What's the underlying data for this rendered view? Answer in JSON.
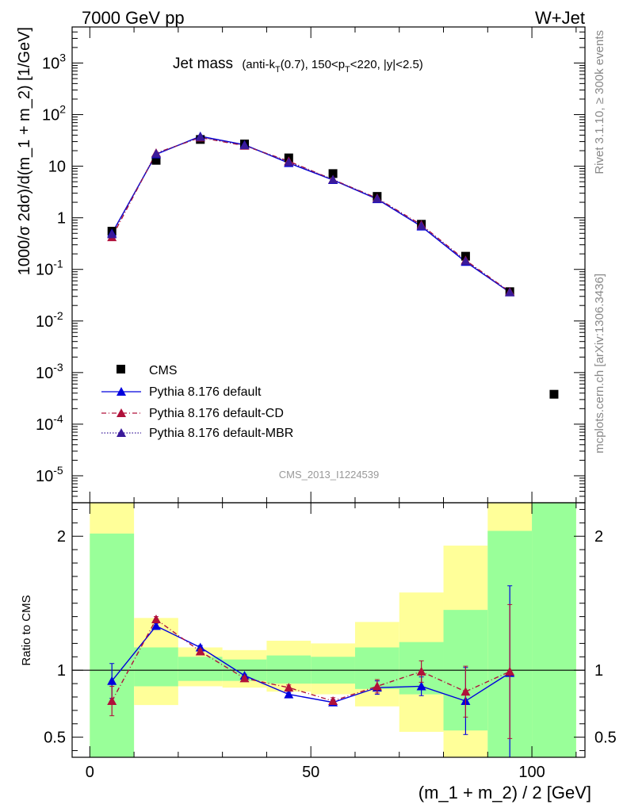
{
  "header": {
    "left": "7000 GeV pp",
    "right": "W+Jet"
  },
  "side_labels": {
    "rivet": "Rivet 3.1.10, ≥ 300k events",
    "mcplots": "mcplots.cern.ch [arXiv:1306.3436]"
  },
  "watermark": "CMS_2013_I1224539",
  "chart_data": [
    {
      "type": "scatter",
      "panel": "main",
      "title_main": "Jet mass",
      "title_sub_parts": [
        "(anti-k",
        "T",
        "(0.7), 150<p",
        "T",
        "<220, |y|<2.5)"
      ],
      "ylabel": "1000/σ 2dσ)/d(m_1 + m_2) [1/GeV]",
      "yscale": "log",
      "ylim": [
        3e-06,
        5000
      ],
      "xlim": [
        -4,
        112
      ],
      "grid": false,
      "legend_position": "bottom-left",
      "y_tick_labels": [
        {
          "value": 1000,
          "base": "10",
          "exp": "3"
        },
        {
          "value": 100,
          "base": "10",
          "exp": "2"
        },
        {
          "value": 10,
          "base": "10",
          "exp": ""
        },
        {
          "value": 1,
          "base": "1",
          "exp": ""
        },
        {
          "value": 0.1,
          "base": "10",
          "exp": "-1"
        },
        {
          "value": 0.01,
          "base": "10",
          "exp": "-2"
        },
        {
          "value": 0.001,
          "base": "10",
          "exp": "-3"
        },
        {
          "value": 0.0001,
          "base": "10",
          "exp": "-4"
        },
        {
          "value": 1e-05,
          "base": "10",
          "exp": "-5"
        }
      ],
      "x": [
        5,
        15,
        25,
        35,
        45,
        55,
        65,
        75,
        85,
        95,
        105
      ],
      "series": [
        {
          "name": "CMS",
          "color": "#000000",
          "marker": "square",
          "line": "none",
          "values": [
            0.55,
            13,
            33,
            27,
            14.5,
            7.2,
            2.6,
            0.75,
            0.18,
            0.037,
            0.00038
          ]
        },
        {
          "name": "Pythia 8.176 default",
          "color": "#0000dd",
          "marker": "triangle",
          "line": "solid",
          "values": [
            0.5,
            17,
            38,
            26,
            11.5,
            5.4,
            2.3,
            0.68,
            0.14,
            0.036,
            null
          ]
        },
        {
          "name": "Pythia 8.176 default-CD",
          "color": "#b0103a",
          "marker": "triangle",
          "line": "dashdot",
          "values": [
            0.42,
            18,
            36,
            25,
            12.5,
            5.5,
            2.4,
            0.73,
            0.15,
            0.037,
            null
          ]
        },
        {
          "name": "Pythia 8.176 default-MBR",
          "color": "#3a1a9a",
          "marker": "triangle",
          "line": "dotted",
          "values": [
            0.48,
            17.5,
            37,
            25.5,
            12,
            5.5,
            2.35,
            0.7,
            0.145,
            0.036,
            null
          ]
        }
      ]
    },
    {
      "type": "line",
      "panel": "ratio",
      "ylabel": "Ratio to CMS",
      "xlabel": "(m_1 + m_2) / 2 [GeV]",
      "ylim": [
        0.35,
        2.25
      ],
      "xlim": [
        -4,
        112
      ],
      "x_ticks": [
        0,
        50,
        100
      ],
      "y_ticks": [
        0.5,
        1,
        2
      ],
      "reference_line": 1,
      "bands": [
        {
          "x": [
            0,
            10
          ],
          "green": [
            0.34,
            2.02
          ],
          "yellow": [
            0.34,
            2.3
          ]
        },
        {
          "x": [
            10,
            20
          ],
          "green": [
            0.88,
            1.17
          ],
          "yellow": [
            0.74,
            1.39
          ]
        },
        {
          "x": [
            20,
            30
          ],
          "green": [
            0.92,
            1.1
          ],
          "yellow": [
            0.88,
            1.17
          ]
        },
        {
          "x": [
            30,
            40
          ],
          "green": [
            0.92,
            1.08
          ],
          "yellow": [
            0.87,
            1.15
          ]
        },
        {
          "x": [
            40,
            50
          ],
          "green": [
            0.9,
            1.11
          ],
          "yellow": [
            0.84,
            1.22
          ]
        },
        {
          "x": [
            50,
            60
          ],
          "green": [
            0.9,
            1.1
          ],
          "yellow": [
            0.82,
            1.2
          ]
        },
        {
          "x": [
            60,
            70
          ],
          "green": [
            0.86,
            1.17
          ],
          "yellow": [
            0.73,
            1.36
          ]
        },
        {
          "x": [
            70,
            80
          ],
          "green": [
            0.82,
            1.21
          ],
          "yellow": [
            0.54,
            1.58
          ]
        },
        {
          "x": [
            80,
            90
          ],
          "green": [
            0.55,
            1.45
          ],
          "yellow": [
            0.34,
            1.93
          ]
        },
        {
          "x": [
            90,
            100
          ],
          "green": [
            0.34,
            2.04
          ],
          "yellow": [
            0.34,
            2.3
          ]
        },
        {
          "x": [
            100,
            110
          ],
          "green": [
            0.34,
            2.3
          ],
          "yellow": [
            0.34,
            2.3
          ]
        }
      ],
      "series": [
        {
          "name": "Pythia 8.176 default",
          "color": "#0000dd",
          "line": "solid",
          "x": [
            5,
            15,
            25,
            35,
            45,
            55,
            65,
            75,
            85,
            95
          ],
          "values": [
            0.92,
            1.33,
            1.17,
            0.96,
            0.82,
            0.76,
            0.87,
            0.88,
            0.77,
            0.98
          ],
          "err": [
            0.13,
            0.02,
            0.015,
            0.01,
            0.015,
            0.02,
            0.05,
            0.07,
            0.25,
            0.65
          ]
        },
        {
          "name": "Pythia 8.176 default-CD",
          "color": "#b0103a",
          "line": "dashdot",
          "x": [
            5,
            15,
            25,
            35,
            45,
            55,
            65,
            75,
            85,
            95
          ],
          "values": [
            0.77,
            1.38,
            1.14,
            0.94,
            0.87,
            0.77,
            0.88,
            0.99,
            0.84,
            0.99
          ],
          "err": [
            0.11,
            0.02,
            0.015,
            0.01,
            0.02,
            0.025,
            0.05,
            0.08,
            0.19,
            0.5
          ]
        }
      ]
    }
  ]
}
